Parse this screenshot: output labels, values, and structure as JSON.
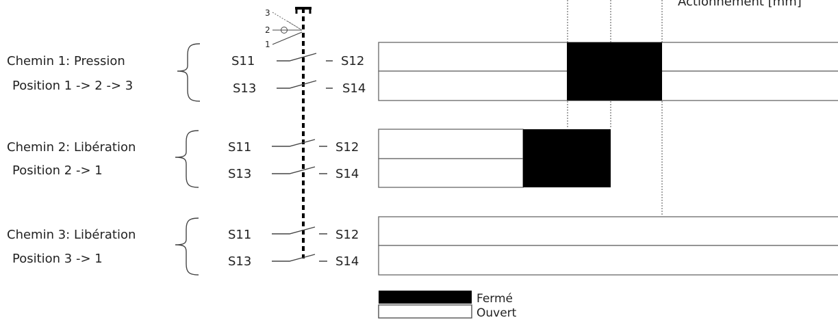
{
  "header": {
    "axis_label": "Actionnement [mm]"
  },
  "position_marks": [
    "3",
    "2",
    "1"
  ],
  "paths": [
    {
      "title": "Chemin 1: Pression",
      "subtitle": "Position 1 -> 2 -> 3",
      "contacts": [
        {
          "from": "S11",
          "to": "S12",
          "state": "closed-between-markers-1-and-3"
        },
        {
          "from": "S13",
          "to": "S14",
          "state": "closed-between-markers-1-and-3"
        }
      ]
    },
    {
      "title": "Chemin 2: Libération",
      "subtitle": "Position 2 -> 1",
      "contacts": [
        {
          "from": "S11",
          "to": "S12",
          "state": "closed-between-start-and-marker-2"
        },
        {
          "from": "S13",
          "to": "S14",
          "state": "closed-between-start-and-marker-2"
        }
      ]
    },
    {
      "title": "Chemin 3: Libération",
      "subtitle": "Position 3 -> 1",
      "contacts": [
        {
          "from": "S11",
          "to": "S12",
          "state": "open"
        },
        {
          "from": "S13",
          "to": "S14",
          "state": "open"
        }
      ]
    }
  ],
  "legend": {
    "closed": "Fermé",
    "open": "Ouvert"
  },
  "colors": {
    "closed": "#000000",
    "open": "#ffffff",
    "line": "#555555"
  }
}
